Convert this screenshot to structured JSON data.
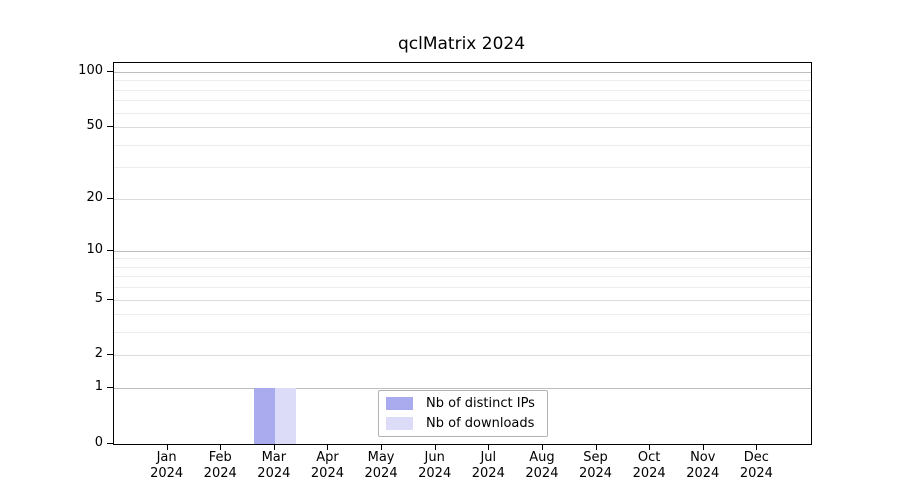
{
  "chart_data": {
    "type": "bar",
    "title": "qclMatrix 2024",
    "categories": [
      "Jan 2024",
      "Feb 2024",
      "Mar 2024",
      "Apr 2024",
      "May 2024",
      "Jun 2024",
      "Jul 2024",
      "Aug 2024",
      "Sep 2024",
      "Oct 2024",
      "Nov 2024",
      "Dec 2024"
    ],
    "series": [
      {
        "name": "Nb of distinct IPs",
        "color": "#aaaaef",
        "values": [
          0,
          0,
          1,
          0,
          0,
          0,
          0,
          0,
          0,
          0,
          0,
          0
        ]
      },
      {
        "name": "Nb of downloads",
        "color": "#dcdcf8",
        "values": [
          0,
          0,
          1,
          0,
          0,
          0,
          0,
          0,
          0,
          0,
          0,
          0
        ]
      }
    ],
    "y_axis": {
      "scale": "log10(1+x)",
      "major_ticks": [
        0,
        1,
        2,
        5,
        10,
        20,
        50,
        100
      ],
      "minor_gridlines": [
        3,
        4,
        6,
        7,
        8,
        9,
        30,
        40,
        60,
        70,
        80,
        90
      ],
      "top_value": 115
    },
    "grid": "horizontal",
    "legend_position": "bottom-center"
  },
  "colors": {
    "grid_strong": "#bdbdbd",
    "grid_mid": "#dcdcdc",
    "grid_minor": "#ececec",
    "axis_spine": "#000000",
    "legend_border": "#b3b3b3",
    "background": "#ffffff"
  }
}
